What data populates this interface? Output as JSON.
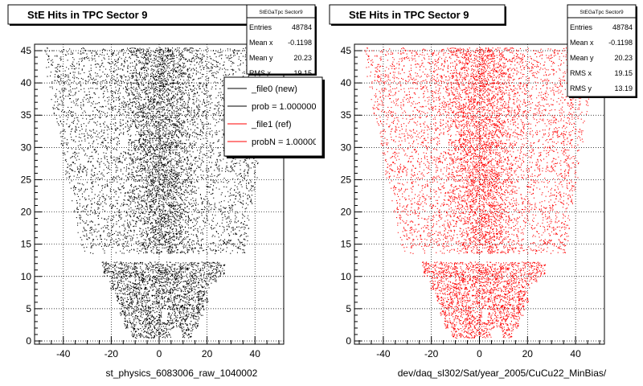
{
  "chart_data": [
    {
      "type": "scatter",
      "title": "StE Hits in TPC Sector 9",
      "xlabel": "st_physics_6083006_raw_1040002",
      "ylabel": "",
      "xlim": [
        -52,
        52
      ],
      "ylim": [
        -0.5,
        46
      ],
      "x_ticks": [
        -40,
        -20,
        0,
        20,
        40
      ],
      "y_ticks": [
        0,
        5,
        10,
        15,
        20,
        25,
        30,
        35,
        40,
        45
      ],
      "marker_color": "#000000",
      "stats": {
        "name": "StEGaTpc Sector9",
        "rows": [
          {
            "label": "Entries",
            "value": "48784"
          },
          {
            "label": "Mean x",
            "value": "-0.1198"
          },
          {
            "label": "Mean y",
            "value": "20.23"
          },
          {
            "label": "RMS x",
            "value": "19.15"
          }
        ]
      },
      "legend": {
        "placement": "top-right",
        "entries": [
          {
            "label": "_file0 (new)",
            "color": "#000000"
          },
          {
            "label": "prob = 1.000000",
            "color": "#000000"
          },
          {
            "label": "_file1 (ref)",
            "color": "#ff0000"
          },
          {
            "label": "probN = 1.000000",
            "color": "#ff0000"
          }
        ]
      },
      "shape": {
        "rows": [
          {
            "y": [
              0.5,
              2
            ],
            "x": [
              -12,
              14
            ]
          },
          {
            "y": [
              2,
              4
            ],
            "x": [
              -15,
              17
            ]
          },
          {
            "y": [
              4,
              6
            ],
            "x": [
              -17,
              19
            ]
          },
          {
            "y": [
              6,
              8
            ],
            "x": [
              -19,
              21
            ]
          },
          {
            "y": [
              8,
              10
            ],
            "x": [
              -21,
              24
            ]
          },
          {
            "y": [
              10,
              12.3
            ],
            "x": [
              -24,
              28
            ]
          },
          {
            "y": [
              13.6,
              16
            ],
            "x": [
              -33,
              37
            ]
          },
          {
            "y": [
              16,
              20
            ],
            "x": [
              -35,
              38
            ]
          },
          {
            "y": [
              20,
              25
            ],
            "x": [
              -38,
              40
            ]
          },
          {
            "y": [
              25,
              30
            ],
            "x": [
              -41,
              42
            ]
          },
          {
            "y": [
              30,
              35
            ],
            "x": [
              -43,
              44
            ]
          },
          {
            "y": [
              35,
              40
            ],
            "x": [
              -46,
              46
            ]
          },
          {
            "y": [
              40,
              45.5
            ],
            "x": [
              -48,
              47
            ]
          }
        ]
      }
    },
    {
      "type": "scatter",
      "title": "StE Hits in TPC Sector 9",
      "xlabel": "dev/daq_sl302/Sat/year_2005/CuCu22_MinBias/",
      "ylabel": "",
      "xlim": [
        -52,
        52
      ],
      "ylim": [
        -0.5,
        46
      ],
      "x_ticks": [
        -40,
        -20,
        0,
        20,
        40
      ],
      "y_ticks": [
        0,
        5,
        10,
        15,
        20,
        25,
        30,
        35,
        40,
        45
      ],
      "marker_color": "#ff0000",
      "stats": {
        "name": "StEGaTpc Sector9",
        "rows": [
          {
            "label": "Entries",
            "value": "48784"
          },
          {
            "label": "Mean x",
            "value": "-0.1198"
          },
          {
            "label": "Mean y",
            "value": "20.23"
          },
          {
            "label": "RMS x",
            "value": "19.15"
          },
          {
            "label": "RMS y",
            "value": "13.19"
          }
        ]
      },
      "shape": {
        "rows": [
          {
            "y": [
              0.5,
              2
            ],
            "x": [
              -12,
              14
            ]
          },
          {
            "y": [
              2,
              4
            ],
            "x": [
              -15,
              17
            ]
          },
          {
            "y": [
              4,
              6
            ],
            "x": [
              -17,
              19
            ]
          },
          {
            "y": [
              6,
              8
            ],
            "x": [
              -19,
              21
            ]
          },
          {
            "y": [
              8,
              10
            ],
            "x": [
              -21,
              24
            ]
          },
          {
            "y": [
              10,
              12.3
            ],
            "x": [
              -24,
              28
            ]
          },
          {
            "y": [
              13.6,
              16
            ],
            "x": [
              -33,
              37
            ]
          },
          {
            "y": [
              16,
              20
            ],
            "x": [
              -35,
              38
            ]
          },
          {
            "y": [
              20,
              25
            ],
            "x": [
              -38,
              40
            ]
          },
          {
            "y": [
              25,
              30
            ],
            "x": [
              -41,
              42
            ]
          },
          {
            "y": [
              30,
              35
            ],
            "x": [
              -43,
              44
            ]
          },
          {
            "y": [
              35,
              40
            ],
            "x": [
              -46,
              46
            ]
          },
          {
            "y": [
              40,
              45.5
            ],
            "x": [
              -48,
              47
            ]
          }
        ]
      }
    }
  ]
}
